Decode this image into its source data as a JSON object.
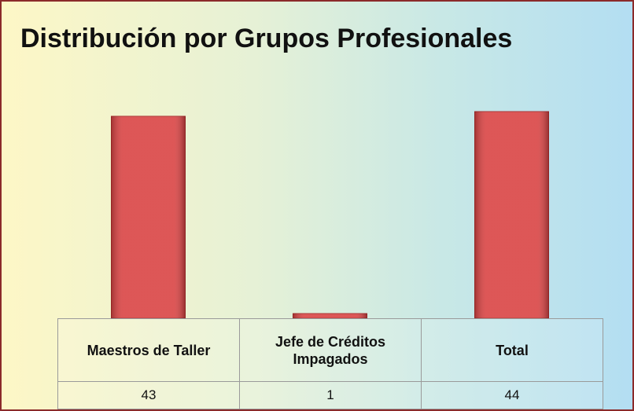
{
  "chart_data": {
    "type": "bar",
    "title": "Distribución por Grupos Profesionales",
    "categories": [
      "Maestros de Taller",
      "Jefe de Créditos Impagados",
      "Total"
    ],
    "values": [
      43,
      1,
      44
    ],
    "color": "#d94444"
  }
}
